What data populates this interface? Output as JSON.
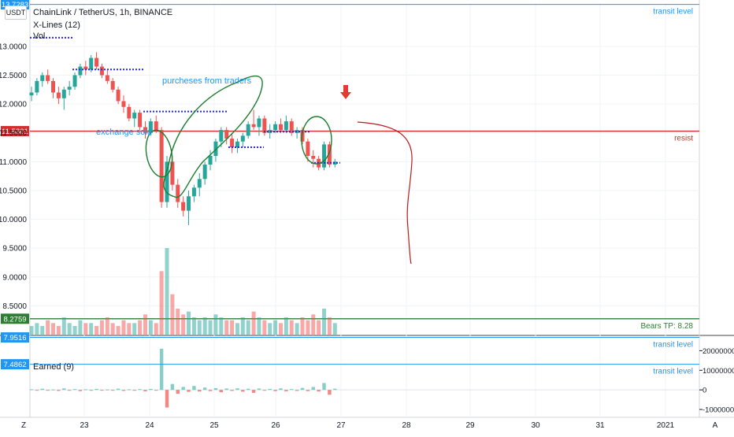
{
  "header": {
    "title": "ChainLink / TetherUS, 1h, BINANCE",
    "indicator1": "X-Lines (12)",
    "indicator2": "Vol",
    "currency": "USDT",
    "sub_indicator": "Earned (9)"
  },
  "chart_data": [
    {
      "type": "candlestick",
      "title": "ChainLink / TetherUS, 1h, BINANCE",
      "ylim": [
        8.0,
        13.75
      ],
      "y_ticks": [
        "13.0000",
        "12.5000",
        "12.0000",
        "11.5000",
        "11.0000",
        "10.5000",
        "10.0000",
        "9.5000",
        "9.0000",
        "8.5000"
      ],
      "x_ticks": [
        "23",
        "24",
        "25",
        "26",
        "27",
        "28",
        "29",
        "30",
        "31",
        "2021"
      ],
      "current_price": "11.5301",
      "levels": [
        {
          "value": 13.7283,
          "tag": "13.7283",
          "label": "transit level",
          "color": "#2196f3"
        },
        {
          "value": 11.5301,
          "tag": "11.5301",
          "label": "resist",
          "color": "#d32f2f"
        },
        {
          "value": 8.2759,
          "tag": "8.2759",
          "label": "Bears TP: 8.28",
          "color": "#2e7d32"
        },
        {
          "value": 7.9516,
          "tag": "7.9516",
          "label": "transit level",
          "color": "#2196f3"
        },
        {
          "value": 7.4862,
          "tag": "7.4862",
          "label": "transit level",
          "color": "#2196f3"
        }
      ],
      "annotations": [
        "purcheses from traders",
        "exchange sold"
      ],
      "candles": [
        [
          12.15,
          12.3,
          12.05,
          12.2
        ],
        [
          12.2,
          12.45,
          12.15,
          12.4
        ],
        [
          12.4,
          12.55,
          12.3,
          12.5
        ],
        [
          12.5,
          12.6,
          12.35,
          12.4
        ],
        [
          12.4,
          12.45,
          12.1,
          12.2
        ],
        [
          12.2,
          12.3,
          12.0,
          12.1
        ],
        [
          12.1,
          12.3,
          11.9,
          12.25
        ],
        [
          12.25,
          12.4,
          12.15,
          12.3
        ],
        [
          12.3,
          12.55,
          12.25,
          12.5
        ],
        [
          12.5,
          12.7,
          12.45,
          12.65
        ],
        [
          12.65,
          12.75,
          12.5,
          12.6
        ],
        [
          12.6,
          12.85,
          12.55,
          12.8
        ],
        [
          12.8,
          12.9,
          12.6,
          12.65
        ],
        [
          12.65,
          12.7,
          12.45,
          12.5
        ],
        [
          12.5,
          12.6,
          12.35,
          12.4
        ],
        [
          12.4,
          12.45,
          12.2,
          12.25
        ],
        [
          12.25,
          12.3,
          12.0,
          12.05
        ],
        [
          12.05,
          12.15,
          11.85,
          11.95
        ],
        [
          11.95,
          12.0,
          11.7,
          11.75
        ],
        [
          11.75,
          11.9,
          11.6,
          11.85
        ],
        [
          11.85,
          11.9,
          11.55,
          11.6
        ],
        [
          11.6,
          11.7,
          11.4,
          11.5
        ],
        [
          11.5,
          11.75,
          11.45,
          11.7
        ],
        [
          11.7,
          11.8,
          11.5,
          11.55
        ],
        [
          11.55,
          11.6,
          10.2,
          10.3
        ],
        [
          10.3,
          11.1,
          10.2,
          11.0
        ],
        [
          11.0,
          11.1,
          10.5,
          10.6
        ],
        [
          10.6,
          10.7,
          10.2,
          10.3
        ],
        [
          10.3,
          10.4,
          10.05,
          10.15
        ],
        [
          10.15,
          10.5,
          9.9,
          10.4
        ],
        [
          10.4,
          10.6,
          10.3,
          10.55
        ],
        [
          10.55,
          10.8,
          10.4,
          10.7
        ],
        [
          10.7,
          11.0,
          10.6,
          10.95
        ],
        [
          10.95,
          11.2,
          10.85,
          11.1
        ],
        [
          11.1,
          11.4,
          11.0,
          11.35
        ],
        [
          11.35,
          11.6,
          11.25,
          11.55
        ],
        [
          11.55,
          11.6,
          11.3,
          11.4
        ],
        [
          11.4,
          11.5,
          11.15,
          11.25
        ],
        [
          11.25,
          11.4,
          11.15,
          11.35
        ],
        [
          11.35,
          11.5,
          11.25,
          11.45
        ],
        [
          11.45,
          11.7,
          11.4,
          11.65
        ],
        [
          11.65,
          11.9,
          11.55,
          11.6
        ],
        [
          11.6,
          11.8,
          11.45,
          11.75
        ],
        [
          11.75,
          11.8,
          11.45,
          11.5
        ],
        [
          11.5,
          11.65,
          11.4,
          11.55
        ],
        [
          11.55,
          11.7,
          11.5,
          11.65
        ],
        [
          11.65,
          11.75,
          11.5,
          11.55
        ],
        [
          11.55,
          11.8,
          11.5,
          11.7
        ],
        [
          11.7,
          11.75,
          11.45,
          11.5
        ],
        [
          11.5,
          11.6,
          11.4,
          11.55
        ],
        [
          11.55,
          11.6,
          11.3,
          11.35
        ],
        [
          11.35,
          11.4,
          11.0,
          11.1
        ],
        [
          11.1,
          11.2,
          10.9,
          11.05
        ],
        [
          11.05,
          11.1,
          10.85,
          10.9
        ],
        [
          10.9,
          11.35,
          10.85,
          11.3
        ],
        [
          11.3,
          11.35,
          10.9,
          10.95
        ],
        [
          10.95,
          11.05,
          10.9,
          11.0
        ]
      ],
      "volume": [
        3,
        4,
        3,
        5,
        4,
        3,
        6,
        4,
        3,
        5,
        4,
        4,
        3,
        5,
        6,
        4,
        3,
        5,
        4,
        4,
        5,
        7,
        5,
        4,
        22,
        30,
        14,
        9,
        7,
        8,
        6,
        5,
        6,
        5,
        7,
        6,
        5,
        5,
        4,
        6,
        5,
        8,
        6,
        5,
        4,
        5,
        4,
        6,
        5,
        4,
        6,
        5,
        7,
        5,
        9,
        6,
        4
      ],
      "volume_up": [
        true,
        true,
        true,
        false,
        false,
        false,
        true,
        true,
        true,
        true,
        false,
        true,
        false,
        false,
        false,
        false,
        false,
        false,
        false,
        true,
        false,
        false,
        true,
        false,
        false,
        true,
        false,
        false,
        false,
        true,
        true,
        true,
        true,
        true,
        true,
        true,
        false,
        false,
        true,
        true,
        true,
        false,
        true,
        false,
        true,
        true,
        false,
        true,
        false,
        true,
        false,
        false,
        false,
        false,
        true,
        false,
        true
      ]
    },
    {
      "type": "bar",
      "title": "Earned (9)",
      "ylim": [
        -12000000,
        27000000
      ],
      "y_ticks": [
        "20000000",
        "10000000",
        "0",
        "-10000000"
      ],
      "y_tick_values": [
        20000000,
        10000000,
        0,
        -10000000
      ],
      "values": [
        300000,
        -400000,
        600000,
        -300000,
        200000,
        -500000,
        800000,
        -300000,
        400000,
        -600000,
        300000,
        -200000,
        500000,
        -300000,
        200000,
        -400000,
        600000,
        -500000,
        300000,
        -200000,
        400000,
        -700000,
        500000,
        -300000,
        21000000,
        -9000000,
        3000000,
        -2000000,
        1500000,
        -1000000,
        2000000,
        -800000,
        1200000,
        -600000,
        900000,
        -1200000,
        700000,
        -500000,
        800000,
        -900000,
        600000,
        -1500000,
        700000,
        -400000,
        500000,
        -600000,
        800000,
        -700000,
        400000,
        -500000,
        1000000,
        -600000,
        1500000,
        -800000,
        3500000,
        -2500000,
        600000
      ]
    }
  ]
}
